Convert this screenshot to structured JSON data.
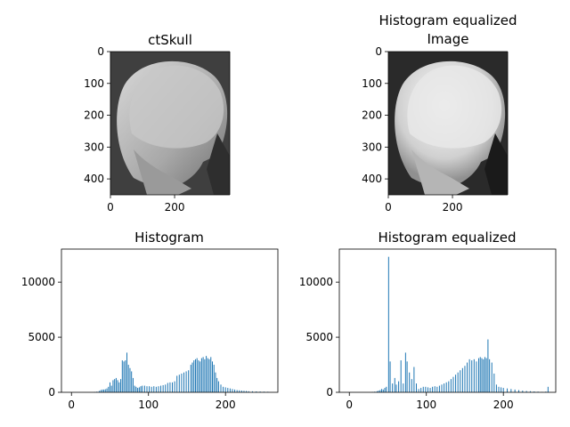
{
  "figure": {
    "ct_image": {
      "title": "ctSkull",
      "xticks": [
        "0",
        "200"
      ],
      "yticks": [
        "0",
        "100",
        "200",
        "300",
        "400"
      ],
      "xlim": [
        0,
        372
      ],
      "ylim": [
        0,
        450
      ]
    },
    "eq_image": {
      "title_line1": "Histogram equalized",
      "title_line2": "Image",
      "xticks": [
        "0",
        "200"
      ],
      "yticks": [
        "0",
        "100",
        "200",
        "300",
        "400"
      ],
      "xlim": [
        0,
        372
      ],
      "ylim": [
        0,
        450
      ]
    }
  },
  "chart_data": [
    {
      "type": "bar",
      "title": "Histogram",
      "xlabel": "",
      "ylabel": "",
      "xlim": [
        -13,
        268
      ],
      "ylim": [
        0,
        13000
      ],
      "xticks": [
        0,
        100,
        200
      ],
      "yticks": [
        0,
        5000,
        10000
      ],
      "x": [
        30,
        33,
        36,
        38,
        40,
        42,
        44,
        46,
        48,
        50,
        52,
        54,
        56,
        58,
        60,
        62,
        64,
        66,
        68,
        70,
        72,
        74,
        76,
        78,
        80,
        82,
        84,
        86,
        88,
        90,
        92,
        95,
        98,
        101,
        104,
        107,
        110,
        113,
        116,
        119,
        122,
        125,
        128,
        131,
        134,
        137,
        140,
        143,
        146,
        149,
        152,
        155,
        157,
        159,
        161,
        163,
        165,
        167,
        169,
        171,
        173,
        175,
        177,
        179,
        181,
        183,
        185,
        187,
        189,
        191,
        194,
        197,
        200,
        203,
        206,
        209,
        212,
        215,
        218,
        221,
        224,
        227,
        230,
        235,
        240,
        245,
        250,
        255
      ],
      "values": [
        30,
        60,
        120,
        200,
        250,
        250,
        280,
        350,
        500,
        900,
        600,
        1100,
        1200,
        1300,
        1100,
        900,
        1200,
        2900,
        2800,
        2900,
        3600,
        2500,
        2200,
        1900,
        1300,
        600,
        500,
        400,
        450,
        550,
        600,
        600,
        550,
        550,
        500,
        550,
        500,
        550,
        600,
        650,
        700,
        850,
        900,
        900,
        1000,
        1500,
        1600,
        1700,
        1800,
        1900,
        2000,
        2500,
        2700,
        2900,
        3000,
        3100,
        2900,
        2800,
        3100,
        3200,
        3000,
        3300,
        3100,
        3000,
        3200,
        2800,
        2500,
        1800,
        1300,
        1000,
        700,
        500,
        450,
        400,
        350,
        300,
        250,
        200,
        180,
        160,
        140,
        120,
        100,
        90,
        80,
        70,
        60,
        50
      ]
    },
    {
      "type": "bar",
      "title": "Histogram equalized",
      "xlabel": "",
      "ylabel": "",
      "xlim": [
        -13,
        268
      ],
      "ylim": [
        0,
        13000
      ],
      "xticks": [
        0,
        100,
        200
      ],
      "yticks": [
        0,
        5000,
        10000
      ],
      "x": [
        30,
        33,
        36,
        38,
        40,
        42,
        44,
        46,
        48,
        51,
        53,
        56,
        59,
        61,
        64,
        67,
        70,
        73,
        75,
        78,
        81,
        84,
        87,
        90,
        93,
        96,
        99,
        102,
        105,
        108,
        111,
        114,
        117,
        120,
        123,
        126,
        129,
        132,
        135,
        138,
        141,
        144,
        147,
        150,
        153,
        156,
        159,
        162,
        165,
        168,
        170,
        172,
        174,
        176,
        178,
        180,
        182,
        185,
        188,
        191,
        194,
        197,
        200,
        205,
        210,
        215,
        220,
        225,
        230,
        235,
        240,
        245,
        250,
        255,
        258
      ],
      "values": [
        40,
        60,
        100,
        150,
        200,
        300,
        250,
        400,
        500,
        12300,
        2800,
        800,
        1300,
        700,
        1000,
        2900,
        800,
        3600,
        2800,
        1800,
        1200,
        2300,
        800,
        300,
        400,
        500,
        500,
        450,
        400,
        500,
        550,
        500,
        600,
        700,
        800,
        900,
        1000,
        1200,
        1400,
        1600,
        1800,
        2000,
        2200,
        2400,
        2700,
        3000,
        2900,
        3000,
        2800,
        3100,
        3200,
        3100,
        3000,
        3200,
        3100,
        4800,
        3000,
        2700,
        1700,
        700,
        500,
        450,
        400,
        350,
        300,
        250,
        200,
        150,
        120,
        100,
        80,
        60,
        40,
        60,
        500
      ]
    }
  ]
}
